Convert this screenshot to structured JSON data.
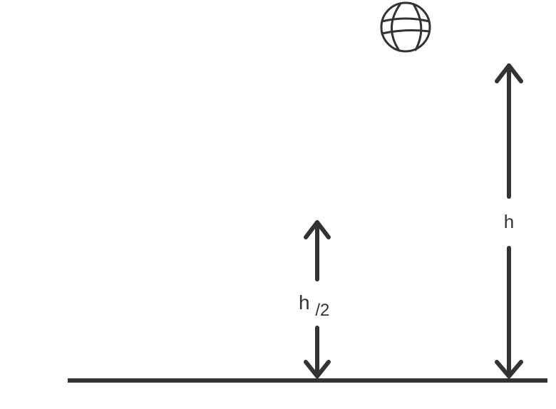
{
  "labels": {
    "full_height": "h",
    "half_height_main": "h",
    "half_height_sub": "/2"
  },
  "icons": {
    "ball": "basketball-icon"
  },
  "colors": {
    "stroke": "#333333",
    "background": "#ffffff"
  }
}
